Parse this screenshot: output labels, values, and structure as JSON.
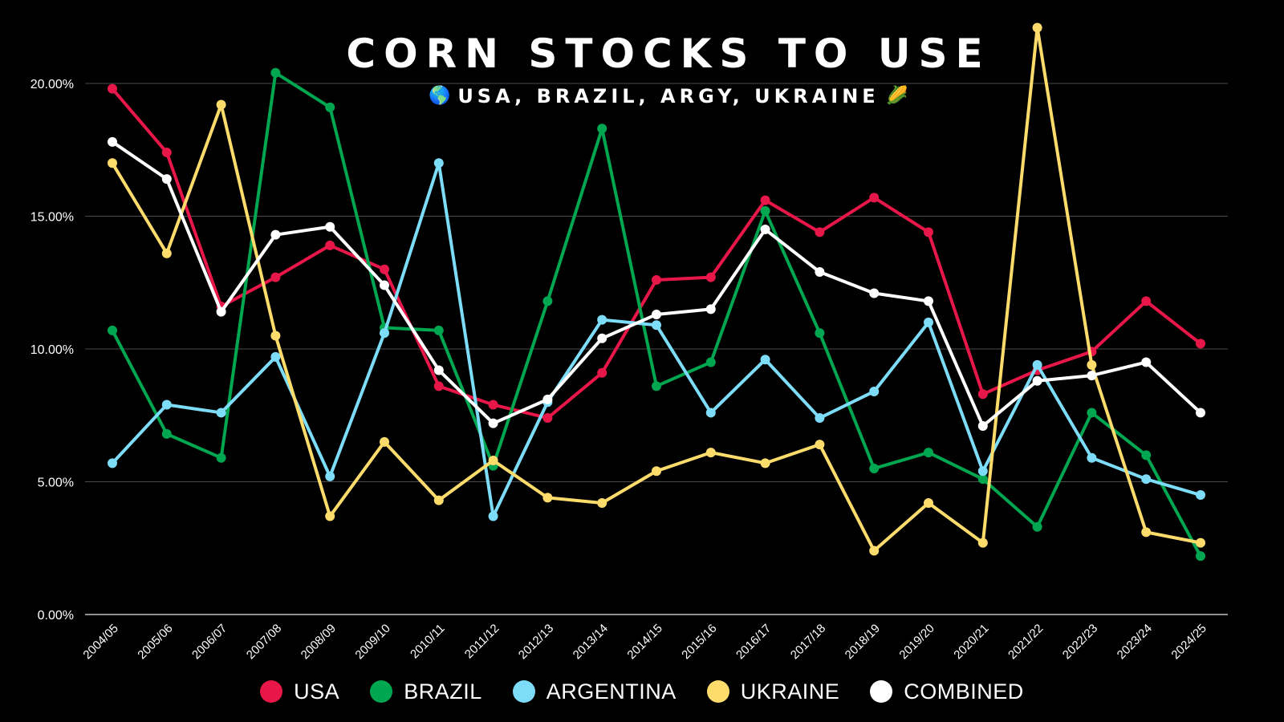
{
  "chart_data": {
    "type": "line",
    "title": "CORN STOCKS TO USE",
    "subtitle_icon_left": "🌎",
    "subtitle": "USA, BRAZIL, ARGY, UKRAINE",
    "subtitle_icon_right": "🌽",
    "xlabel": "",
    "ylabel": "",
    "ylim": [
      0,
      22
    ],
    "yticks": [
      0,
      5,
      10,
      15,
      20
    ],
    "ytick_labels": [
      "0.00%",
      "5.00%",
      "10.00%",
      "15.00%",
      "20.00%"
    ],
    "grid": true,
    "legend_position": "bottom",
    "categories": [
      "2004/05",
      "2005/06",
      "2006/07",
      "2007/08",
      "2008/09",
      "2009/10",
      "2010/11",
      "2011/12",
      "2012/13",
      "2013/14",
      "2014/15",
      "2015/16",
      "2016/17",
      "2017/18",
      "2018/19",
      "2019/20",
      "2020/21",
      "2021/22",
      "2022/23",
      "2023/24",
      "2024/25"
    ],
    "series": [
      {
        "name": "USA",
        "color": "#e8174a",
        "values": [
          19.8,
          17.4,
          11.6,
          12.7,
          13.9,
          13.0,
          8.6,
          7.9,
          7.4,
          9.1,
          12.6,
          12.7,
          15.6,
          14.4,
          15.7,
          14.4,
          8.3,
          9.2,
          9.9,
          11.8,
          10.2
        ]
      },
      {
        "name": "BRAZIL",
        "color": "#00a650",
        "values": [
          10.7,
          6.8,
          5.9,
          20.4,
          19.1,
          10.8,
          10.7,
          5.6,
          11.8,
          18.3,
          8.6,
          9.5,
          15.2,
          10.6,
          5.5,
          6.1,
          5.1,
          3.3,
          7.6,
          6.0,
          2.2
        ]
      },
      {
        "name": "ARGENTINA",
        "color": "#7ddcf8",
        "values": [
          5.7,
          7.9,
          7.6,
          9.7,
          5.2,
          10.6,
          17.0,
          3.7,
          8.0,
          11.1,
          10.9,
          7.6,
          9.6,
          7.4,
          8.4,
          11.0,
          5.4,
          9.4,
          5.9,
          5.1,
          4.5
        ]
      },
      {
        "name": "UKRAINE",
        "color": "#fddc6c",
        "values": [
          17.0,
          13.6,
          19.2,
          10.5,
          3.7,
          6.5,
          4.3,
          5.8,
          4.4,
          4.2,
          5.4,
          6.1,
          5.7,
          6.4,
          2.4,
          4.2,
          2.7,
          22.1,
          9.4,
          3.1,
          2.7
        ]
      },
      {
        "name": "COMBINED",
        "color": "#ffffff",
        "values": [
          17.8,
          16.4,
          11.4,
          14.3,
          14.6,
          12.4,
          9.2,
          7.2,
          8.1,
          10.4,
          11.3,
          11.5,
          14.5,
          12.9,
          12.1,
          11.8,
          7.1,
          8.8,
          9.0,
          9.5,
          7.6
        ]
      }
    ]
  }
}
